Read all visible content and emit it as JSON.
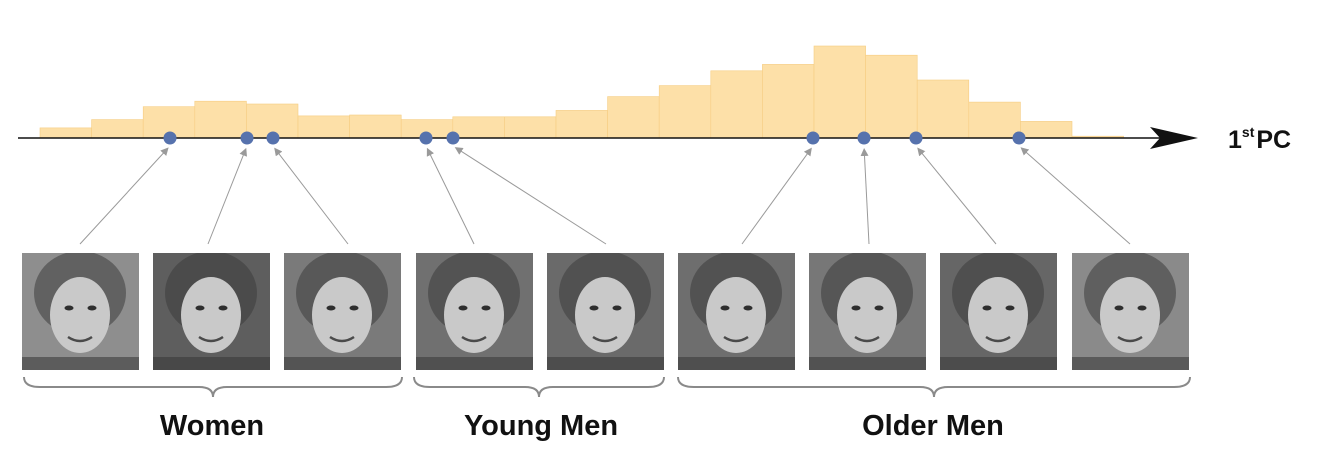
{
  "axis": {
    "superscript_prefix": "1",
    "superscript": "st",
    "label": "PC"
  },
  "colors": {
    "histogram": "#fde0a8",
    "histogram_edge": "#f6cd82",
    "point": "#5672ad",
    "axis": "#111111",
    "arrow": "#9a9a9a",
    "brace": "#8a8a8a"
  },
  "histogram": {
    "relative_heights": [
      0.11,
      0.2,
      0.34,
      0.4,
      0.37,
      0.24,
      0.25,
      0.2,
      0.23,
      0.23,
      0.3,
      0.45,
      0.57,
      0.73,
      0.8,
      1.0,
      0.9,
      0.63,
      0.39,
      0.18,
      0.02
    ]
  },
  "points": [
    {
      "id": "w1",
      "photo": "face-1"
    },
    {
      "id": "w2",
      "photo": "face-2"
    },
    {
      "id": "w3",
      "photo": "face-3"
    },
    {
      "id": "y1",
      "photo": "face-4"
    },
    {
      "id": "y2",
      "photo": "face-5"
    },
    {
      "id": "o1",
      "photo": "face-6"
    },
    {
      "id": "o2",
      "photo": "face-7"
    },
    {
      "id": "o3",
      "photo": "face-8"
    },
    {
      "id": "o4",
      "photo": "face-9"
    }
  ],
  "photos": [
    {
      "id": "face-1",
      "group": "Women",
      "tone": "#8e8e8e"
    },
    {
      "id": "face-2",
      "group": "Women",
      "tone": "#5e5e5e"
    },
    {
      "id": "face-3",
      "group": "Women",
      "tone": "#7a7a7a"
    },
    {
      "id": "face-4",
      "group": "Young Men",
      "tone": "#707070"
    },
    {
      "id": "face-5",
      "group": "Young Men",
      "tone": "#6a6a6a"
    },
    {
      "id": "face-6",
      "group": "Older Men",
      "tone": "#6e6e6e"
    },
    {
      "id": "face-7",
      "group": "Older Men",
      "tone": "#777777"
    },
    {
      "id": "face-8",
      "group": "Older Men",
      "tone": "#666666"
    },
    {
      "id": "face-9",
      "group": "Older Men",
      "tone": "#8a8a8a"
    }
  ],
  "groups": [
    {
      "label": "Women"
    },
    {
      "label": "Young Men"
    },
    {
      "label": "Older Men"
    }
  ]
}
